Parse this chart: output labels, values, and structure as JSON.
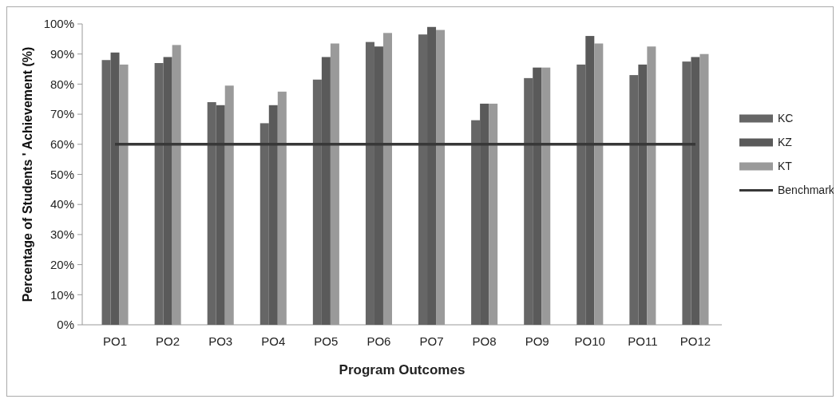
{
  "chart_data": {
    "type": "bar",
    "xlabel": "Program Outcomes",
    "ylabel": "Percentage of Students ' Achievement (%)",
    "categories": [
      "PO1",
      "PO2",
      "PO3",
      "PO4",
      "PO5",
      "PO6",
      "PO7",
      "PO8",
      "PO9",
      "PO10",
      "PO11",
      "PO12"
    ],
    "series": [
      {
        "name": "KC",
        "color": "#666666",
        "values": [
          88,
          87,
          74,
          67,
          81.5,
          94,
          96.5,
          68,
          82,
          86.5,
          83,
          87.5
        ]
      },
      {
        "name": "KZ",
        "color": "#5a5a5a",
        "values": [
          90.5,
          89,
          73,
          73,
          89,
          92.5,
          99,
          73.5,
          85.5,
          96,
          86.5,
          89
        ]
      },
      {
        "name": "KT",
        "color": "#9a9a9a",
        "values": [
          86.5,
          93,
          79.5,
          77.5,
          93.5,
          97,
          98,
          73.5,
          85.5,
          93.5,
          92.5,
          90
        ]
      },
      {
        "name": "Benchmark",
        "type": "line",
        "color": "#383838",
        "values": [
          60,
          60,
          60,
          60,
          60,
          60,
          60,
          60,
          60,
          60,
          60,
          60
        ]
      }
    ],
    "ylim": [
      0,
      100
    ],
    "yticks": [
      {
        "value": 0,
        "label": "0%"
      },
      {
        "value": 10,
        "label": "10%"
      },
      {
        "value": 20,
        "label": "20%"
      },
      {
        "value": 30,
        "label": "30%"
      },
      {
        "value": 40,
        "label": "40%"
      },
      {
        "value": 50,
        "label": "50%"
      },
      {
        "value": 60,
        "label": "60%"
      },
      {
        "value": 70,
        "label": "70%"
      },
      {
        "value": 80,
        "label": "80%"
      },
      {
        "value": 90,
        "label": "90%"
      },
      {
        "value": 100,
        "label": "100%"
      }
    ],
    "legend": "right"
  }
}
